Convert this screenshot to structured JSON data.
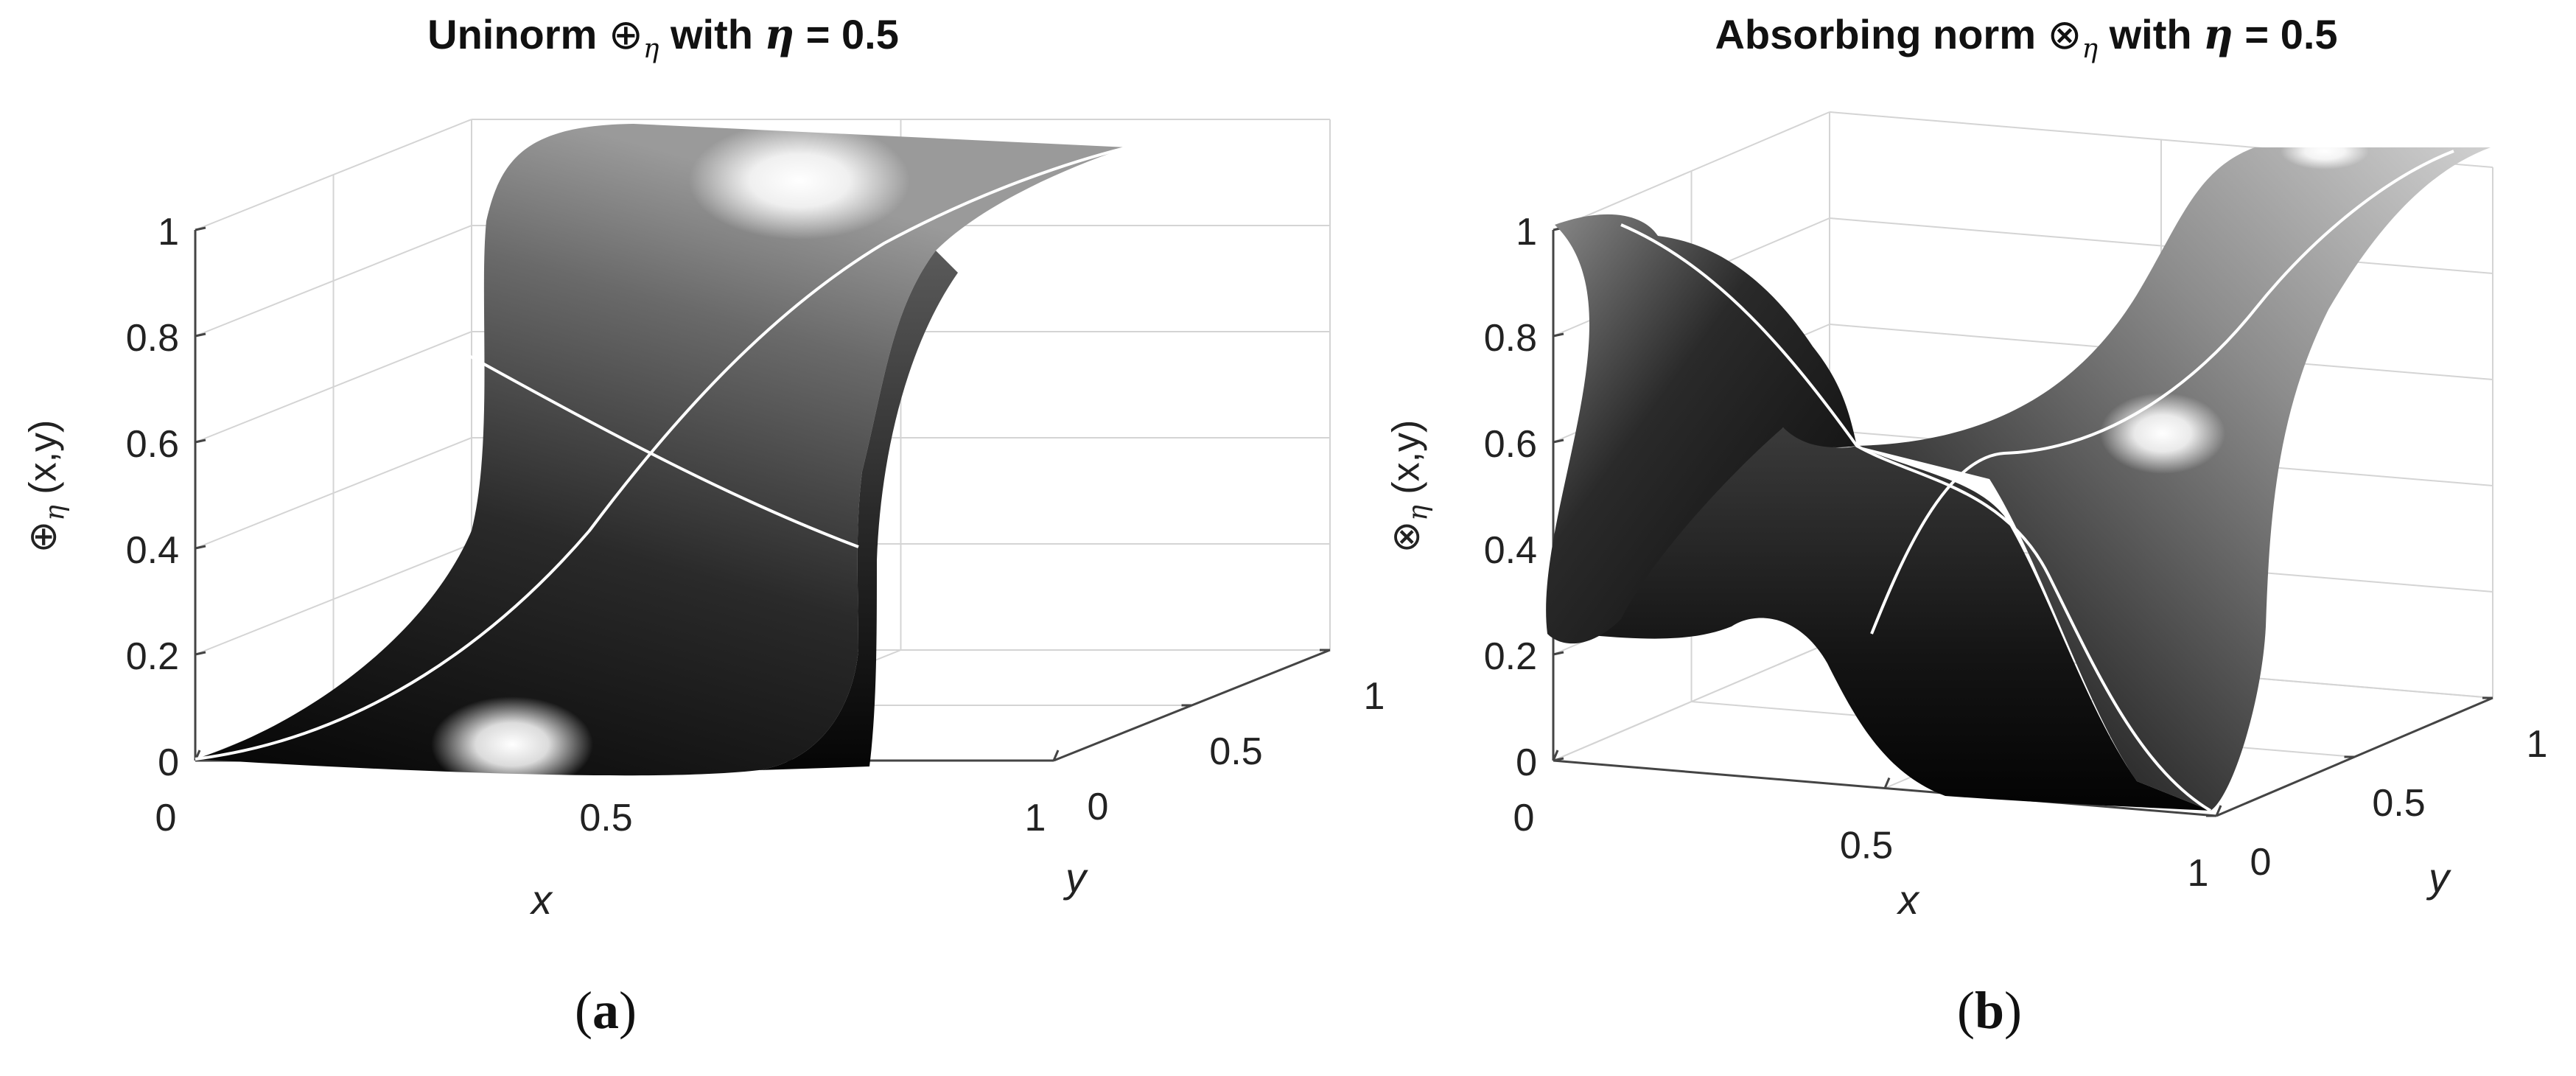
{
  "panels": {
    "a": {
      "title_pre": "Uninorm ",
      "title_op": "⊕",
      "title_sub": "η",
      "title_mid": " with ",
      "title_eta": "η",
      "title_post": " = 0.5",
      "zlabel_op": "⊕",
      "zlabel_sub": "η",
      "zlabel_args": " (x,y)",
      "caption_open": "(",
      "caption_letter": "a",
      "caption_close": ")"
    },
    "b": {
      "title_pre": "Absorbing norm ",
      "title_op": "⊗",
      "title_sub": "η",
      "title_mid": " with ",
      "title_eta": "η",
      "title_post": " = 0.5",
      "zlabel_op": "⊗",
      "zlabel_sub": "η",
      "zlabel_args": " (x,y)",
      "caption_open": "(",
      "caption_letter": "b",
      "caption_close": ")"
    }
  },
  "chart_data": [
    {
      "type": "surface",
      "title": "Uninorm ⊕η with η = 0.5",
      "xlabel": "x",
      "ylabel": "y",
      "zlabel": "⊕η (x,y)",
      "xlim": [
        0,
        1
      ],
      "ylim": [
        0,
        1
      ],
      "zlim": [
        0,
        1
      ],
      "x_ticks": [
        "0",
        "0.5",
        "1"
      ],
      "y_ticks": [
        "0",
        "0.5",
        "1"
      ],
      "z_ticks": [
        "0",
        "0.2",
        "0.4",
        "0.6",
        "0.8",
        "1"
      ],
      "colormap": "grayscale",
      "grid": true,
      "surface_samples": {
        "x": [
          0,
          0.25,
          0.5,
          0.75,
          1
        ],
        "y": [
          0,
          0.25,
          0.5,
          0.75,
          1
        ],
        "z": [
          [
            0,
            0,
            0,
            0.01,
            1
          ],
          [
            0,
            0.02,
            0.1,
            0.5,
            1
          ],
          [
            0,
            0.1,
            0.5,
            0.9,
            1
          ],
          [
            0,
            0.5,
            0.9,
            0.98,
            1
          ],
          [
            0,
            0.99,
            1,
            1,
            1
          ]
        ]
      },
      "highlighted_curves": [
        {
          "name": "",
          "points": [
            [
              0,
              0,
              0
            ],
            [
              0.5,
              0.5,
              0.5
            ],
            [
              1,
              1,
              1
            ]
          ]
        },
        {
          "name": "",
          "points": [
            [
              0,
              1,
              0.74
            ],
            [
              0.5,
              0.5,
              0.5
            ],
            [
              1,
              0,
              0.37
            ]
          ]
        }
      ]
    },
    {
      "type": "surface",
      "title": "Absorbing norm ⊗η with η = 0.5",
      "xlabel": "x",
      "ylabel": "y",
      "zlabel": "⊗η (x,y)",
      "xlim": [
        0,
        1
      ],
      "ylim": [
        0,
        1
      ],
      "zlim": [
        0,
        1
      ],
      "x_ticks": [
        "0",
        "0.5",
        "1"
      ],
      "y_ticks": [
        "0",
        "0.5",
        "1"
      ],
      "z_ticks": [
        "0",
        "0.2",
        "0.4",
        "0.6",
        "0.8",
        "1"
      ],
      "colormap": "grayscale",
      "grid": true,
      "surface_samples": {
        "x": [
          0,
          0.25,
          0.5,
          0.75,
          1
        ],
        "y": [
          0,
          0.25,
          0.5,
          0.75,
          1
        ],
        "z": [
          [
            1,
            0.75,
            0.5,
            0.25,
            0
          ],
          [
            0.25,
            0.4,
            0.5,
            0.45,
            0.25
          ],
          [
            0.5,
            0.5,
            0.5,
            0.5,
            0.5
          ],
          [
            0.75,
            0.6,
            0.5,
            0.55,
            0.75
          ],
          [
            1,
            0.95,
            0.5,
            0.05,
            0
          ]
        ]
      },
      "highlighted_curves": [
        {
          "name": "",
          "points": [
            [
              0,
              0,
              1
            ],
            [
              0.5,
              0.5,
              0.5
            ],
            [
              1,
              1,
              1
            ]
          ]
        },
        {
          "name": "",
          "points": [
            [
              0,
              1,
              0.2
            ],
            [
              0.5,
              0.5,
              0.5
            ],
            [
              1,
              0,
              0
            ]
          ]
        }
      ]
    }
  ]
}
